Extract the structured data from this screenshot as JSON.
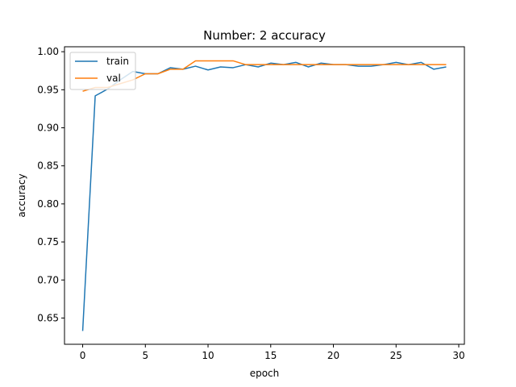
{
  "chart_data": {
    "type": "line",
    "title": "Number: 2 accuracy",
    "xlabel": "epoch",
    "ylabel": "accuracy",
    "xlim": [
      -1.45,
      30.45
    ],
    "ylim": [
      0.6155,
      1.0065
    ],
    "xticks": [
      0,
      5,
      10,
      15,
      20,
      25,
      30
    ],
    "yticks": [
      0.65,
      0.7,
      0.75,
      0.8,
      0.85,
      0.9,
      0.95,
      1.0
    ],
    "ytick_labels": [
      "0.65",
      "0.70",
      "0.75",
      "0.80",
      "0.85",
      "0.90",
      "0.95",
      "1.00"
    ],
    "grid": false,
    "legend_position": "upper-left",
    "x": [
      0,
      1,
      2,
      3,
      4,
      5,
      6,
      7,
      8,
      9,
      10,
      11,
      12,
      13,
      14,
      15,
      16,
      17,
      18,
      19,
      20,
      21,
      22,
      23,
      24,
      25,
      26,
      27,
      28,
      29
    ],
    "series": [
      {
        "name": "train",
        "color": "#1f77b4",
        "values": [
          0.633,
          0.942,
          0.951,
          0.963,
          0.974,
          0.971,
          0.971,
          0.979,
          0.977,
          0.981,
          0.976,
          0.98,
          0.979,
          0.983,
          0.98,
          0.985,
          0.983,
          0.986,
          0.98,
          0.985,
          0.983,
          0.983,
          0.981,
          0.981,
          0.983,
          0.986,
          0.983,
          0.986,
          0.977,
          0.98
        ]
      },
      {
        "name": "val",
        "color": "#ff7f0e",
        "values": [
          0.948,
          0.953,
          0.953,
          0.958,
          0.963,
          0.971,
          0.971,
          0.977,
          0.977,
          0.988,
          0.988,
          0.988,
          0.988,
          0.983,
          0.983,
          0.983,
          0.983,
          0.983,
          0.983,
          0.983,
          0.983,
          0.983,
          0.983,
          0.983,
          0.983,
          0.983,
          0.983,
          0.983,
          0.983,
          0.983
        ]
      }
    ]
  }
}
